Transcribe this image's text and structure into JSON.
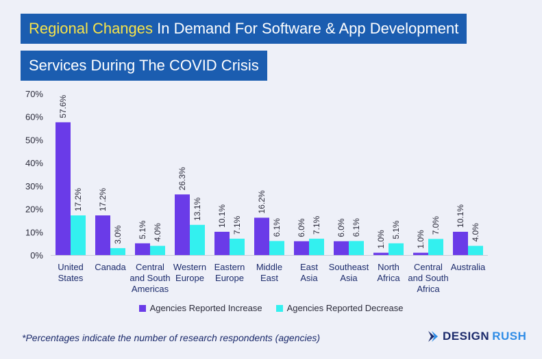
{
  "title": {
    "line1_highlight": "Regional Changes",
    "line1_rest": " In Demand For Software & App Development",
    "line2": "Services During The COVID Crisis"
  },
  "colors": {
    "increase": "#6a3be8",
    "decrease": "#33f0ef",
    "banner": "#1b5db0",
    "highlight": "#f7e34a"
  },
  "chart_data": {
    "type": "bar",
    "categories": [
      [
        "United",
        "States"
      ],
      [
        "Canada"
      ],
      [
        "Central",
        "and South",
        "Americas"
      ],
      [
        "Western",
        "Europe"
      ],
      [
        "Eastern",
        "Europe"
      ],
      [
        "Middle",
        "East"
      ],
      [
        "East",
        "Asia"
      ],
      [
        "Southeast",
        "Asia"
      ],
      [
        "North",
        "Africa"
      ],
      [
        "Central",
        "and South",
        "Africa"
      ],
      [
        "Australia"
      ]
    ],
    "series": [
      {
        "name": "Agencies Reported Increase",
        "values": [
          57.6,
          17.2,
          5.1,
          26.3,
          10.1,
          16.2,
          6.0,
          6.0,
          1.0,
          1.0,
          10.1
        ],
        "labels": [
          "57.6%",
          "17.2%",
          "5.1%",
          "26.3%",
          "10.1%",
          "16.2%",
          "6.0%",
          "6.0%",
          "1.0%",
          "1.0%",
          "10.1%"
        ]
      },
      {
        "name": "Agencies Reported Decrease",
        "values": [
          17.2,
          3.0,
          4.0,
          13.1,
          7.1,
          6.1,
          7.1,
          6.1,
          5.1,
          7.0,
          4.0
        ],
        "labels": [
          "17.2%",
          "3.0%",
          "4.0%",
          "13.1%",
          "7.1%",
          "6.1%",
          "7.1%",
          "6.1%",
          "5.1%",
          "7.0%",
          "4.0%"
        ]
      }
    ],
    "yticks": [
      "0%",
      "10%",
      "20%",
      "30%",
      "40%",
      "50%",
      "60%",
      "70%"
    ],
    "ylim": [
      0,
      70
    ],
    "legend_position": "bottom-center",
    "grid": false
  },
  "footnote": "*Percentages indicate the number of research respondents (agencies)",
  "brand": {
    "part1": "DESIGN",
    "part2": "RUSH",
    "icon": "chevron-logo-icon"
  }
}
